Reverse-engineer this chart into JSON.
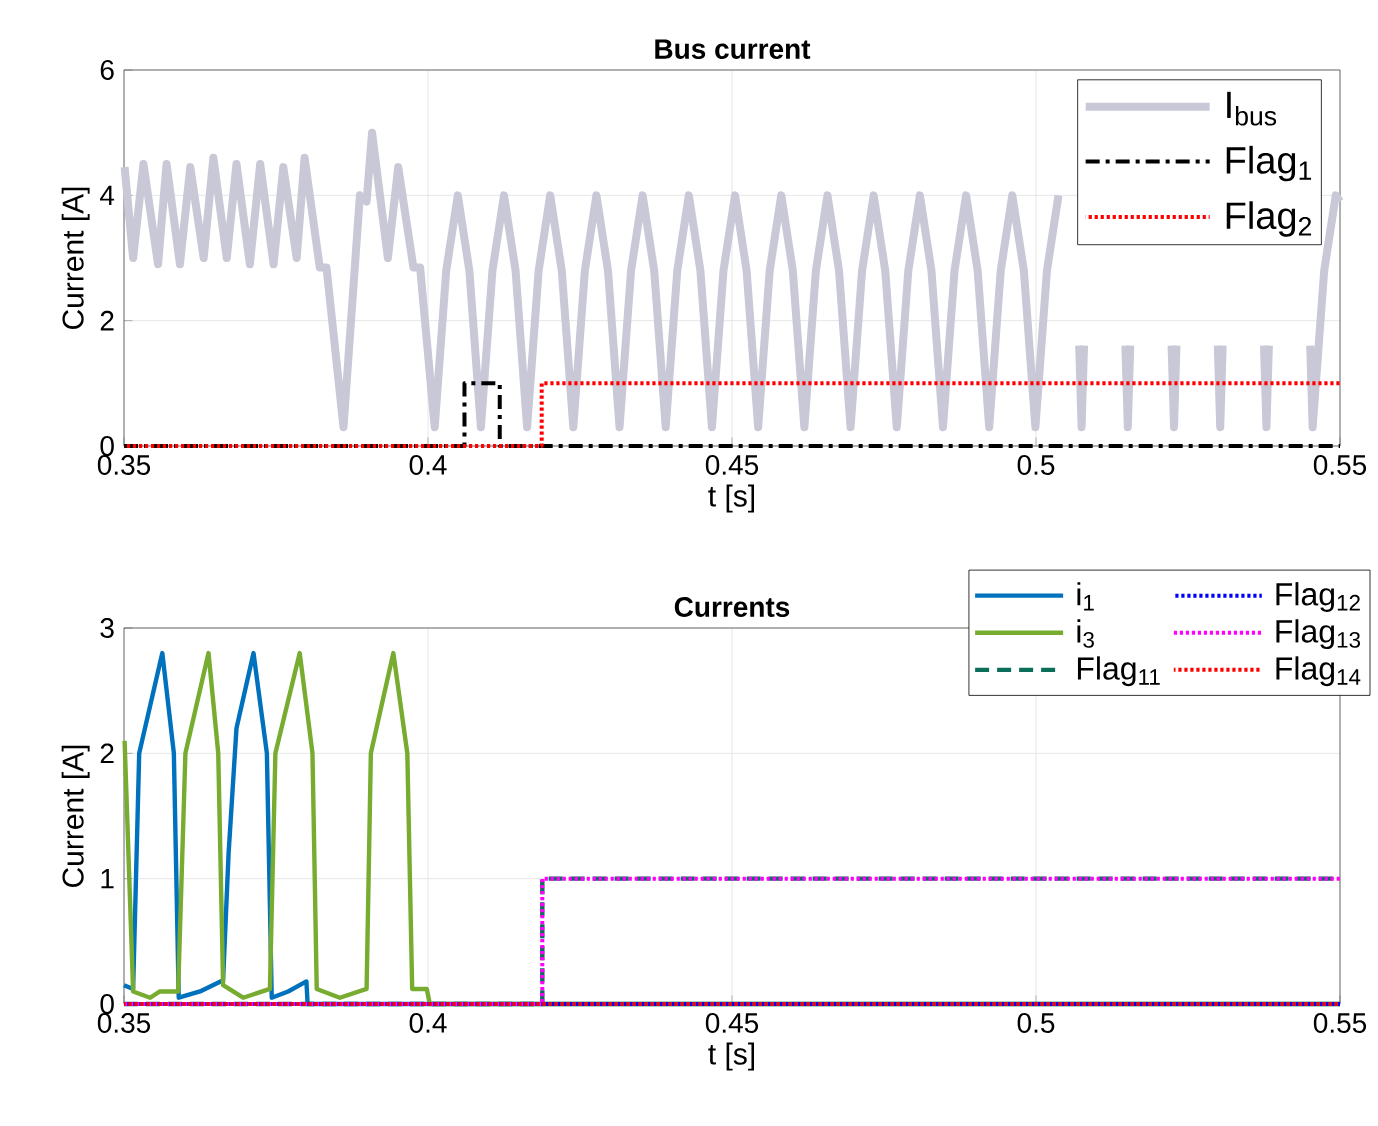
{
  "chart_data": [
    {
      "type": "line",
      "title": "Bus current",
      "xlabel": "t [s]",
      "ylabel": "Current  [A]",
      "xlim": [
        0.35,
        0.55
      ],
      "ylim": [
        0,
        6
      ],
      "xticks": [
        0.35,
        0.4,
        0.45,
        0.5,
        0.55
      ],
      "yticks": [
        0,
        2,
        4,
        6
      ],
      "grid": true,
      "legend": "top right",
      "series": [
        {
          "name": "I$_{bus}$",
          "color": "#c8c8d7",
          "line_style": "solid",
          "x": [
            0.3501,
            0.3515,
            0.3532,
            0.3556,
            0.357,
            0.3592,
            0.3609,
            0.3631,
            0.3647,
            0.3669,
            0.3685,
            0.3707,
            0.3724,
            0.3746,
            0.3762,
            0.3784,
            0.3797,
            0.3822,
            0.3833,
            0.3861,
            0.3888,
            0.3899,
            0.3908,
            0.3934,
            0.3951,
            0.3976,
            0.3987,
            0.4011,
            0.403,
            0.4049,
            0.4068,
            0.4087,
            0.4106,
            0.4125,
            0.4144,
            0.4163,
            0.4182,
            0.4201,
            0.422,
            0.4239,
            0.4258,
            0.4277,
            0.4296,
            0.4315,
            0.4334,
            0.4353,
            0.4372,
            0.4391,
            0.441,
            0.4429,
            0.4448,
            0.4467,
            0.4486,
            0.4505,
            0.4524,
            0.4543,
            0.4562,
            0.4581,
            0.46,
            0.4619,
            0.4638,
            0.4657,
            0.4676,
            0.4695,
            0.4714,
            0.4733,
            0.4752,
            0.4771,
            0.479,
            0.4809,
            0.4828,
            0.4847,
            0.4866,
            0.4885,
            0.4904,
            0.4923,
            0.4942,
            0.4961,
            0.498,
            0.4999,
            0.5018,
            0.5037,
            0.5056,
            0.5071,
            0.5075,
            0.5079,
            0.5113,
            0.5147,
            0.5151,
            0.5155,
            0.5189,
            0.5223,
            0.5227,
            0.5231,
            0.5265,
            0.5299,
            0.5303,
            0.5307,
            0.5341,
            0.5375,
            0.5379,
            0.5383,
            0.5417,
            0.5451,
            0.5455,
            0.5474,
            0.5493,
            0.55
          ],
          "values": [
            4.45,
            3.0,
            4.5,
            2.9,
            4.5,
            2.9,
            4.45,
            3.0,
            4.6,
            3.0,
            4.5,
            2.9,
            4.5,
            2.9,
            4.45,
            3.0,
            4.6,
            2.85,
            2.85,
            0.3,
            4.0,
            3.9,
            5.0,
            3.0,
            4.45,
            2.85,
            2.85,
            0.3,
            2.8,
            4.0,
            2.8,
            0.3,
            2.8,
            4.0,
            2.8,
            0.3,
            2.8,
            4.0,
            2.8,
            0.3,
            2.8,
            4.0,
            2.8,
            0.3,
            2.8,
            4.0,
            2.8,
            0.3,
            2.8,
            4.0,
            2.8,
            0.3,
            2.8,
            4.0,
            2.8,
            0.3,
            2.8,
            4.0,
            2.8,
            0.3,
            2.8,
            4.0,
            2.8,
            0.3,
            2.8,
            4.0,
            2.8,
            0.3,
            2.8,
            4.0,
            2.8,
            0.3,
            2.8,
            4.0,
            2.8,
            0.3,
            2.8,
            4.0,
            2.8,
            0.3,
            2.8,
            4.0,
            null,
            1.6,
            0.3,
            1.6,
            null,
            1.6,
            0.3,
            1.6,
            null,
            1.6,
            0.3,
            1.6,
            null,
            1.6,
            0.3,
            1.6,
            null,
            1.6,
            0.3,
            1.6,
            null,
            1.6,
            0.3,
            2.8,
            4.0,
            3.9
          ]
        },
        {
          "name": "Flag$_{1}$",
          "color": "#000000",
          "type": "step",
          "line_style": "dashdot",
          "x": [
            0.35,
            0.406,
            0.4118,
            0.55
          ],
          "values": [
            0,
            1,
            0,
            0
          ]
        },
        {
          "name": "Flag$_{2}$",
          "color": "#ff0000",
          "type": "step",
          "line_style": "dotted",
          "x": [
            0.35,
            0.4187,
            0.55
          ],
          "values": [
            0,
            1,
            1
          ]
        }
      ]
    },
    {
      "type": "line",
      "title": "Currents",
      "xlabel": "t [s]",
      "ylabel": "Current  [A]",
      "xlim": [
        0.35,
        0.55
      ],
      "ylim": [
        0,
        3
      ],
      "xticks": [
        0.35,
        0.4,
        0.45,
        0.5,
        0.55
      ],
      "yticks": [
        0,
        1,
        2,
        3
      ],
      "grid": true,
      "legend": "top right",
      "series": [
        {
          "name": "i$_{1}$",
          "color": "#0072bd",
          "line_style": "solid",
          "x": [
            0.35,
            0.3515,
            0.3525,
            0.3563,
            0.3582,
            0.359,
            0.3625,
            0.3663,
            0.3672,
            0.3685,
            0.3713,
            0.3735,
            0.3743,
            0.377,
            0.38,
            0.3802,
            0.55
          ],
          "values": [
            0.15,
            0.12,
            2.0,
            2.8,
            2.0,
            0.05,
            0.1,
            0.19,
            1.2,
            2.2,
            2.8,
            2.0,
            0.05,
            0.1,
            0.18,
            0,
            0
          ]
        },
        {
          "name": "i$_{3}$",
          "color": "#77ac30",
          "line_style": "solid",
          "x": [
            0.3501,
            0.3515,
            0.3543,
            0.3559,
            0.3589,
            0.3601,
            0.3639,
            0.3655,
            0.3663,
            0.3696,
            0.374,
            0.3749,
            0.3789,
            0.381,
            0.3817,
            0.3855,
            0.3899,
            0.3906,
            0.3943,
            0.3966,
            0.3974,
            0.3998,
            0.4003,
            0.55
          ],
          "values": [
            2.1,
            0.1,
            0.05,
            0.1,
            0.1,
            2.0,
            2.8,
            2.0,
            0.15,
            0.05,
            0.12,
            2.0,
            2.8,
            2.0,
            0.12,
            0.05,
            0.12,
            2.0,
            2.8,
            2.0,
            0.12,
            0.12,
            0,
            0
          ]
        },
        {
          "name": "Flag$_{11}$",
          "color": "#0b6e5a",
          "type": "step",
          "line_style": "dashed",
          "x": [
            0.35,
            0.4188,
            0.55
          ],
          "values": [
            0,
            1,
            1
          ]
        },
        {
          "name": "Flag$_{12}$",
          "color": "#0000ff",
          "type": "step",
          "line_style": "dotted",
          "x": [
            0.35,
            0.55
          ],
          "values": [
            0,
            0
          ]
        },
        {
          "name": "Flag$_{13}$",
          "color": "#ff00ff",
          "type": "step",
          "line_style": "dotted",
          "x": [
            0.35,
            0.4188,
            0.55
          ],
          "values": [
            0,
            1,
            1
          ]
        },
        {
          "name": "Flag$_{14}$",
          "color": "#ff0000",
          "type": "step",
          "line_style": "dotted",
          "x": [
            0.35,
            0.55
          ],
          "values": [
            0,
            0
          ]
        }
      ]
    }
  ]
}
